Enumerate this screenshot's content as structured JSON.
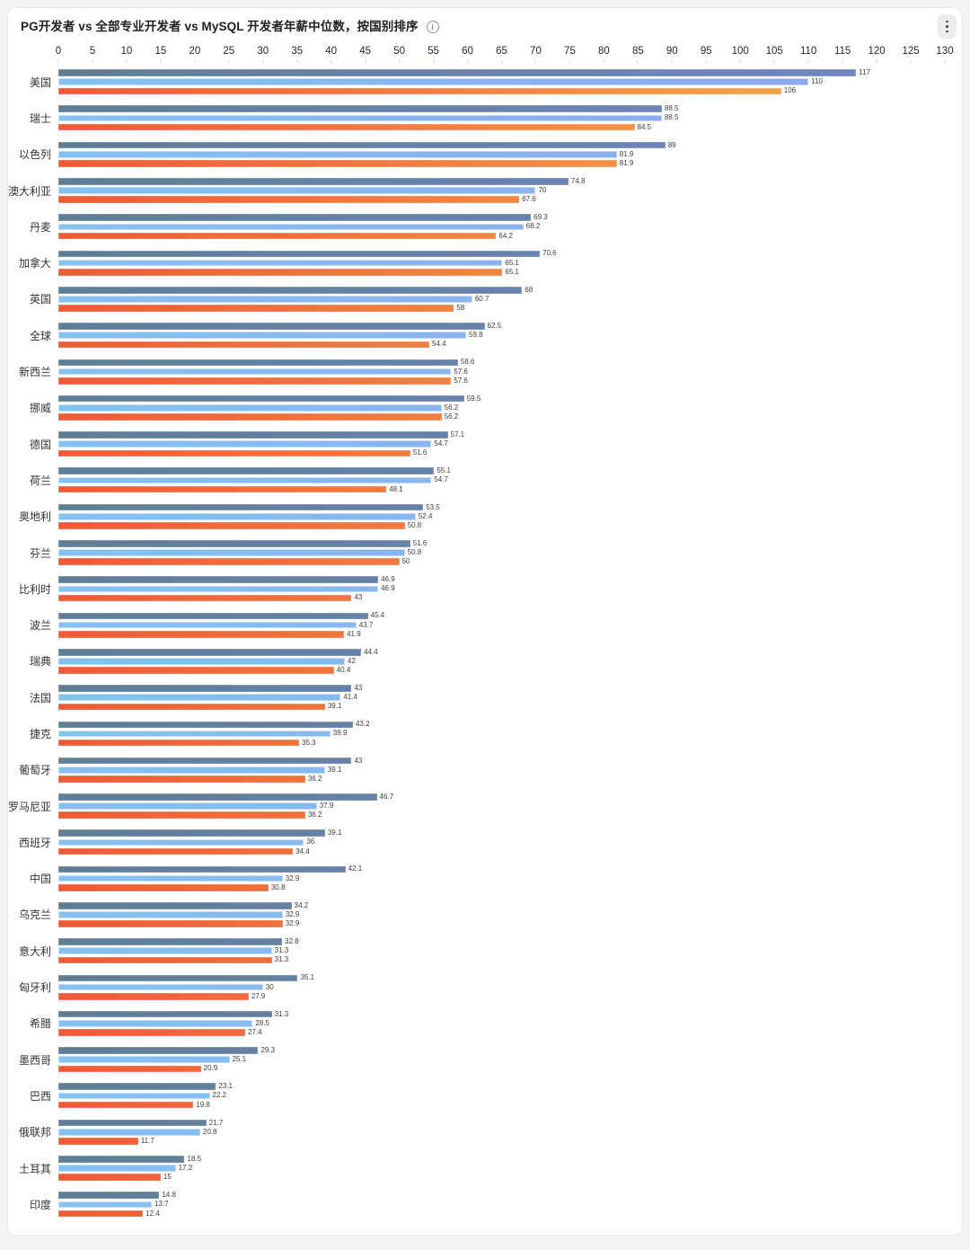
{
  "header": {
    "title": "PG开发者 vs 全部专业开发者 vs MySQL 开发者年薪中位数，按国别排序",
    "info_icon": "info-circle-icon",
    "menu_icon": "kebab-menu-icon"
  },
  "chart_data": {
    "type": "bar",
    "orientation": "horizontal",
    "title": "PG开发者 vs 全部专业开发者 vs MySQL 开发者年薪中位数，按国别排序",
    "axis": {
      "position": "top",
      "min": 0,
      "max": 130,
      "step": 5
    },
    "grid": false,
    "legend": "none",
    "value_labels": true,
    "series": [
      {
        "name": "PG开发者",
        "color_start": "#5f7e95",
        "color_end": "#7287c7"
      },
      {
        "name": "全部专业开发者",
        "color_start": "#85c2f0",
        "color_end": "#8fa3eb"
      },
      {
        "name": "MySQL开发者",
        "color_start": "#ee5a36",
        "color_end": "#f6b14f"
      }
    ],
    "categories": [
      "美国",
      "瑞士",
      "以色列",
      "澳大利亚",
      "丹麦",
      "加拿大",
      "英国",
      "全球",
      "新西兰",
      "挪威",
      "德国",
      "荷兰",
      "奥地利",
      "芬兰",
      "比利时",
      "波兰",
      "瑞典",
      "法国",
      "捷克",
      "葡萄牙",
      "罗马尼亚",
      "西班牙",
      "中国",
      "乌克兰",
      "意大利",
      "匈牙利",
      "希腊",
      "墨西哥",
      "巴西",
      "俄联邦",
      "土耳其",
      "印度"
    ],
    "values": [
      [
        117,
        110,
        106
      ],
      [
        88.5,
        88.5,
        84.5
      ],
      [
        89,
        81.9,
        81.9
      ],
      [
        74.8,
        70,
        67.6
      ],
      [
        69.3,
        68.2,
        64.2
      ],
      [
        70.6,
        65.1,
        65.1
      ],
      [
        68,
        60.7,
        58
      ],
      [
        62.5,
        59.8,
        54.4
      ],
      [
        58.6,
        57.6,
        57.6
      ],
      [
        59.5,
        56.2,
        56.2
      ],
      [
        57.1,
        54.7,
        51.6
      ],
      [
        55.1,
        54.7,
        48.1
      ],
      [
        53.5,
        52.4,
        50.8
      ],
      [
        51.6,
        50.8,
        50
      ],
      [
        46.9,
        46.9,
        43
      ],
      [
        45.4,
        43.7,
        41.9
      ],
      [
        44.4,
        42,
        40.4
      ],
      [
        43,
        41.4,
        39.1
      ],
      [
        43.2,
        39.9,
        35.3
      ],
      [
        43,
        39.1,
        36.2
      ],
      [
        46.7,
        37.9,
        36.2
      ],
      [
        39.1,
        36,
        34.4
      ],
      [
        42.1,
        32.9,
        30.8
      ],
      [
        34.2,
        32.9,
        32.9
      ],
      [
        32.8,
        31.3,
        31.3
      ],
      [
        35.1,
        30,
        27.9
      ],
      [
        31.3,
        28.5,
        27.4
      ],
      [
        29.3,
        25.1,
        20.9
      ],
      [
        23.1,
        22.2,
        19.8
      ],
      [
        21.7,
        20.8,
        11.7
      ],
      [
        18.5,
        17.2,
        15
      ],
      [
        14.8,
        13.7,
        12.4
      ]
    ]
  }
}
